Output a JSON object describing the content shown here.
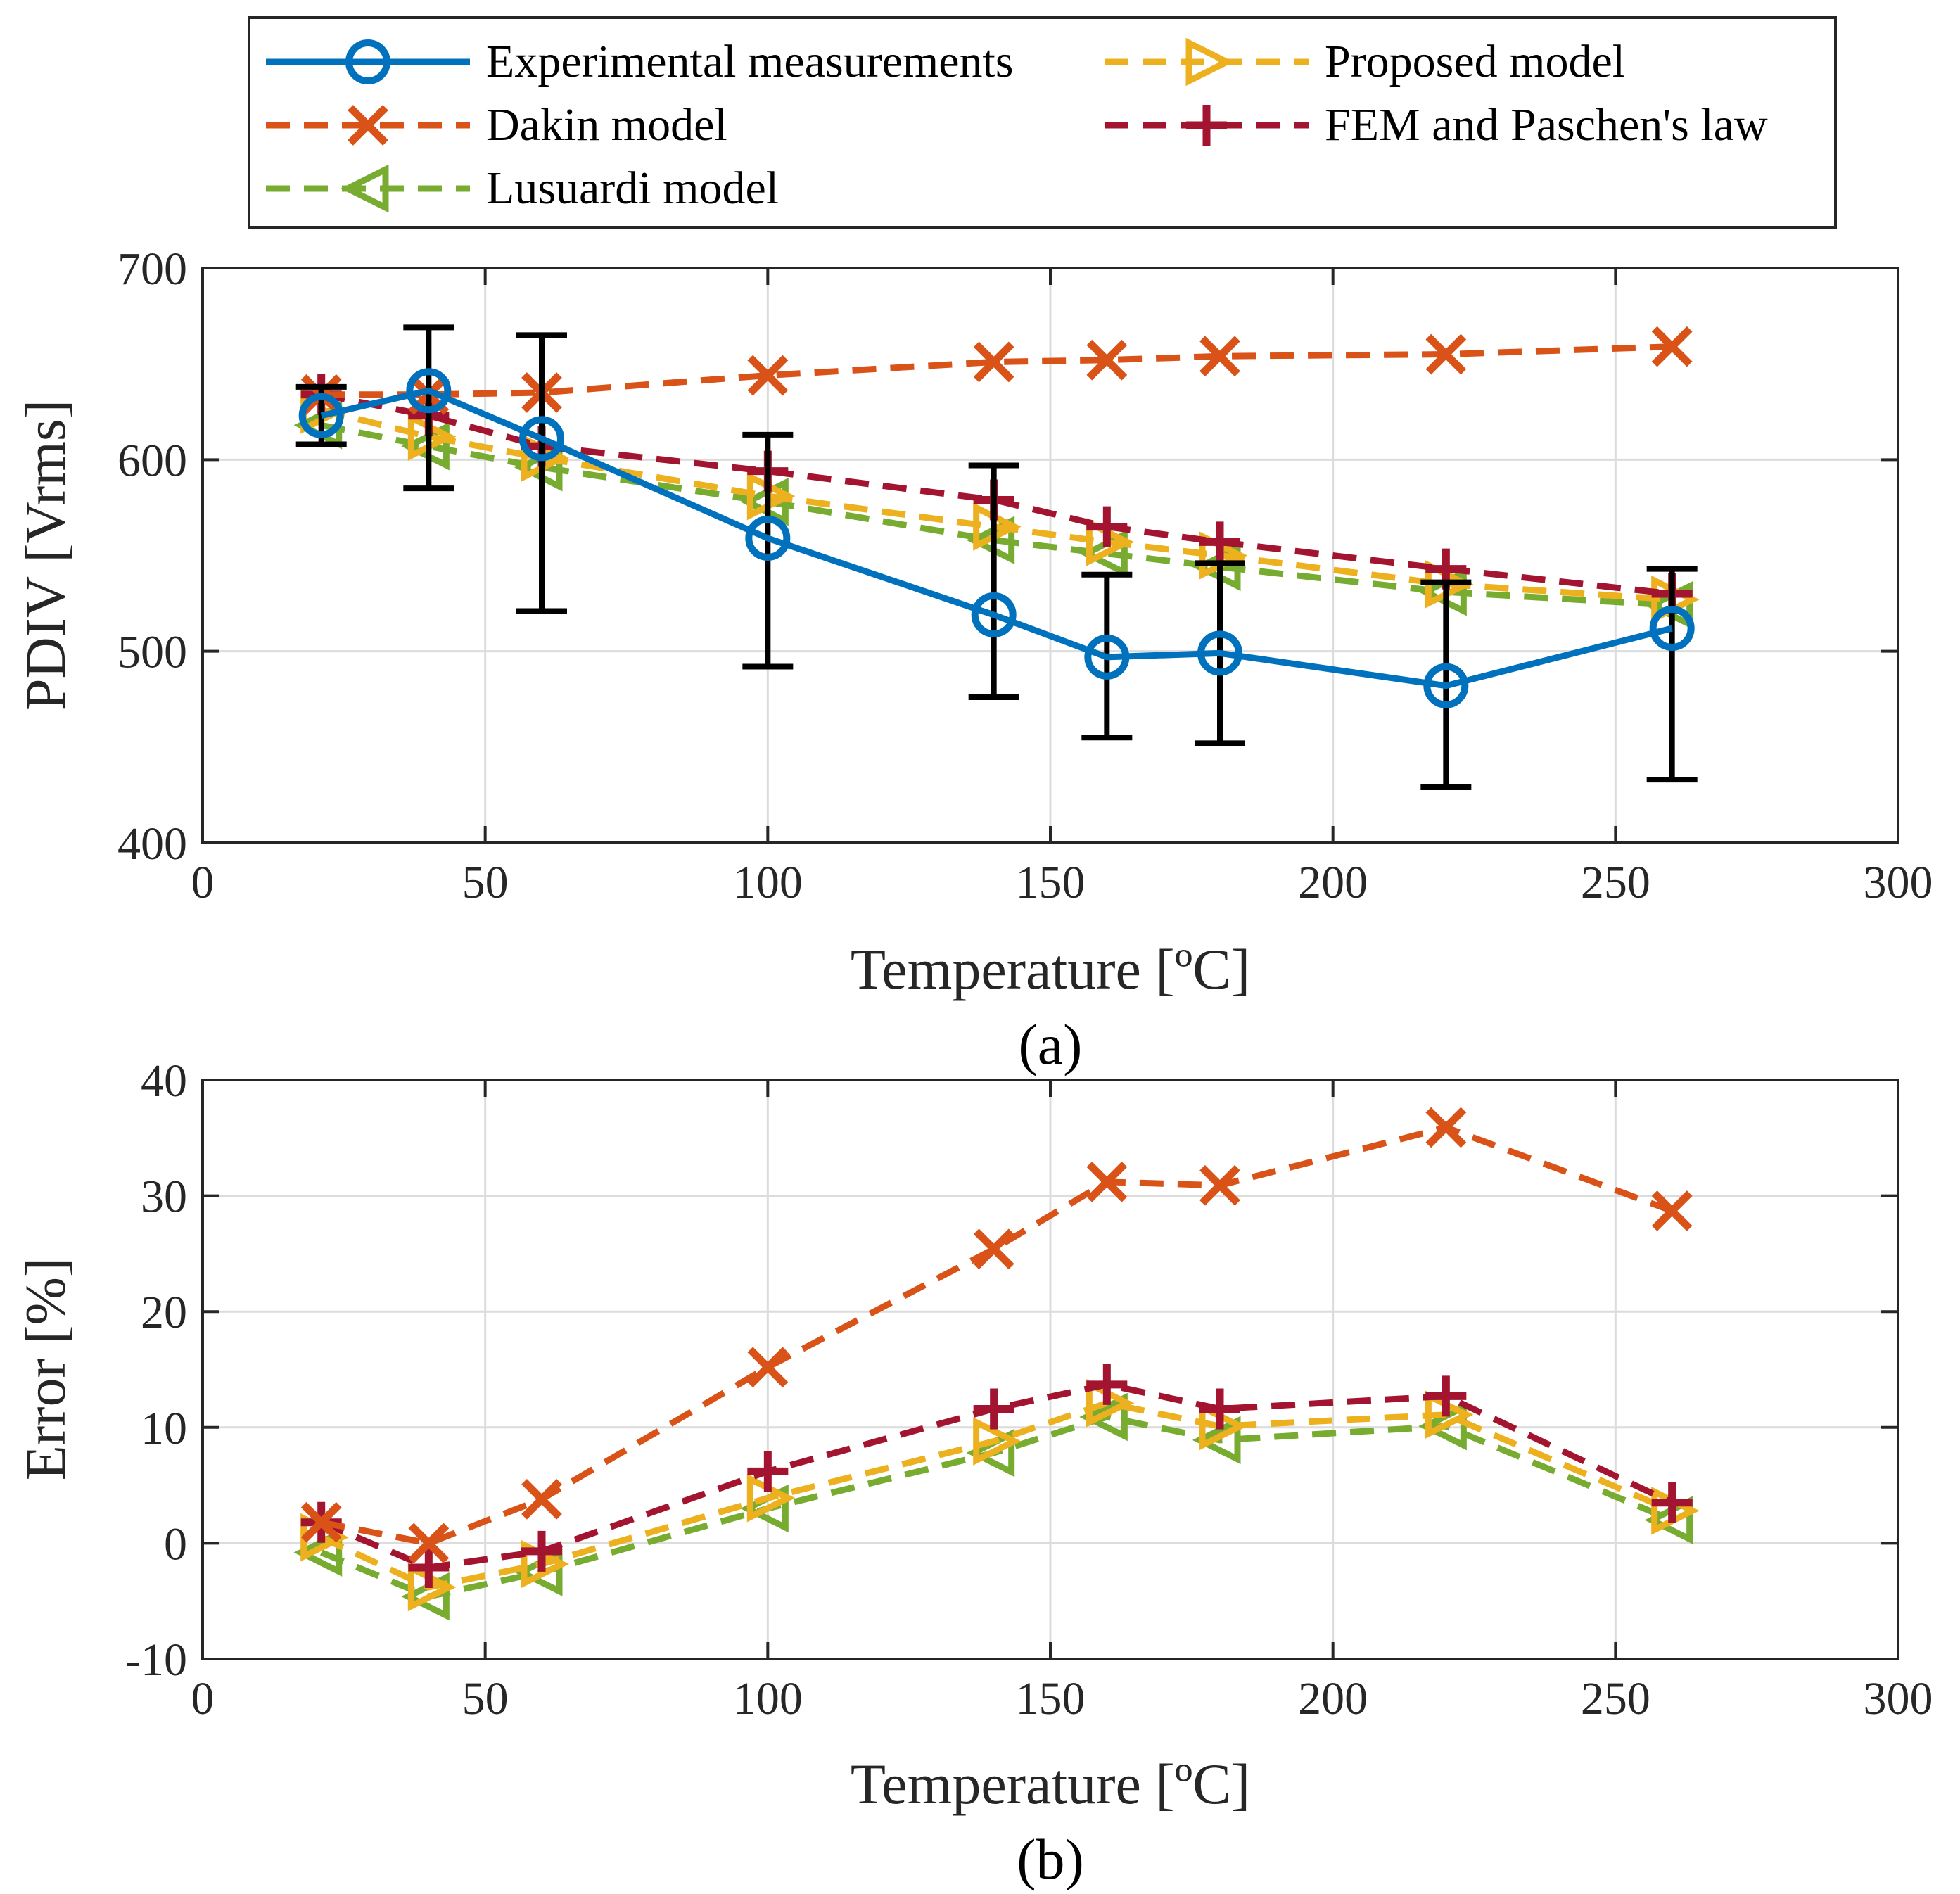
{
  "legend": {
    "entries": [
      {
        "key": "experimental",
        "label": "Experimental measurements"
      },
      {
        "key": "proposed",
        "label": "Proposed model"
      },
      {
        "key": "dakin",
        "label": "Dakin model"
      },
      {
        "key": "fem",
        "label": "FEM and Paschen's law"
      },
      {
        "key": "lusuardi",
        "label": "Lusuardi model"
      }
    ]
  },
  "colors": {
    "experimental": "#0072BD",
    "dakin": "#D95319",
    "lusuardi": "#77AC30",
    "proposed": "#EDB120",
    "fem": "#A2142F",
    "errorbar": "#000000"
  },
  "chart_data": [
    {
      "id": "a",
      "type": "line",
      "caption": "(a)",
      "xlabel": "Temperature [ºC]",
      "ylabel": "PDIV [Vrms]",
      "xlim": [
        0,
        300
      ],
      "ylim": [
        400,
        700
      ],
      "xticks": [
        0,
        50,
        100,
        150,
        200,
        250,
        300
      ],
      "yticks": [
        400,
        500,
        600,
        700
      ],
      "grid": true,
      "x": [
        21,
        40,
        60,
        100,
        140,
        160,
        180,
        220,
        260
      ],
      "series": [
        {
          "key": "experimental",
          "name": "Experimental measurements",
          "style": "solid",
          "marker": "circle",
          "values": [
            623,
            636,
            611,
            559,
            519,
            497,
            499,
            482,
            512
          ],
          "error_low": [
            608,
            585,
            521,
            492,
            476,
            455,
            452,
            429,
            433
          ],
          "error_high": [
            638,
            669,
            665,
            613,
            597,
            540,
            546,
            536,
            543
          ]
        },
        {
          "key": "dakin",
          "name": "Dakin model",
          "style": "dashed",
          "marker": "x",
          "values": [
            634,
            634,
            635,
            644,
            651,
            652,
            654,
            655,
            659
          ]
        },
        {
          "key": "lusuardi",
          "name": "Lusuardi model",
          "style": "dashed",
          "marker": "triangle-left",
          "values": [
            618,
            607,
            596,
            578,
            558,
            551,
            544,
            531,
            524
          ]
        },
        {
          "key": "proposed",
          "name": "Proposed model",
          "style": "dashed",
          "marker": "triangle-right",
          "values": [
            626,
            612,
            601,
            581,
            565,
            557,
            550,
            535,
            527
          ]
        },
        {
          "key": "fem",
          "name": "FEM and Paschen's law",
          "style": "dashed",
          "marker": "plus",
          "values": [
            634,
            623,
            607,
            594,
            579,
            565,
            557,
            543,
            530
          ]
        }
      ]
    },
    {
      "id": "b",
      "type": "line",
      "caption": "(b)",
      "xlabel": "Temperature [ºC]",
      "ylabel": "Error [%]",
      "xlim": [
        0,
        300
      ],
      "ylim": [
        -10,
        40
      ],
      "xticks": [
        0,
        50,
        100,
        150,
        200,
        250,
        300
      ],
      "yticks": [
        -10,
        0,
        10,
        20,
        30,
        40
      ],
      "grid": true,
      "x": [
        21,
        40,
        60,
        100,
        140,
        160,
        180,
        220,
        260
      ],
      "series": [
        {
          "key": "dakin",
          "name": "Dakin model",
          "style": "dashed",
          "marker": "x",
          "values": [
            1.8,
            0.0,
            3.8,
            15.2,
            25.4,
            31.2,
            30.9,
            35.9,
            28.7
          ]
        },
        {
          "key": "lusuardi",
          "name": "Lusuardi model",
          "style": "dashed",
          "marker": "triangle-left",
          "values": [
            -0.8,
            -4.6,
            -2.5,
            3.0,
            7.8,
            10.9,
            8.9,
            10.1,
            2.0
          ]
        },
        {
          "key": "proposed",
          "name": "Proposed model",
          "style": "dashed",
          "marker": "triangle-right",
          "values": [
            0.5,
            -3.8,
            -1.8,
            3.9,
            8.8,
            12.1,
            10.1,
            11.1,
            2.8
          ]
        },
        {
          "key": "fem",
          "name": "FEM and Paschen's law",
          "style": "dashed",
          "marker": "plus",
          "values": [
            1.8,
            -2.1,
            -0.7,
            6.2,
            11.6,
            13.7,
            11.6,
            12.7,
            3.5
          ]
        }
      ]
    }
  ]
}
